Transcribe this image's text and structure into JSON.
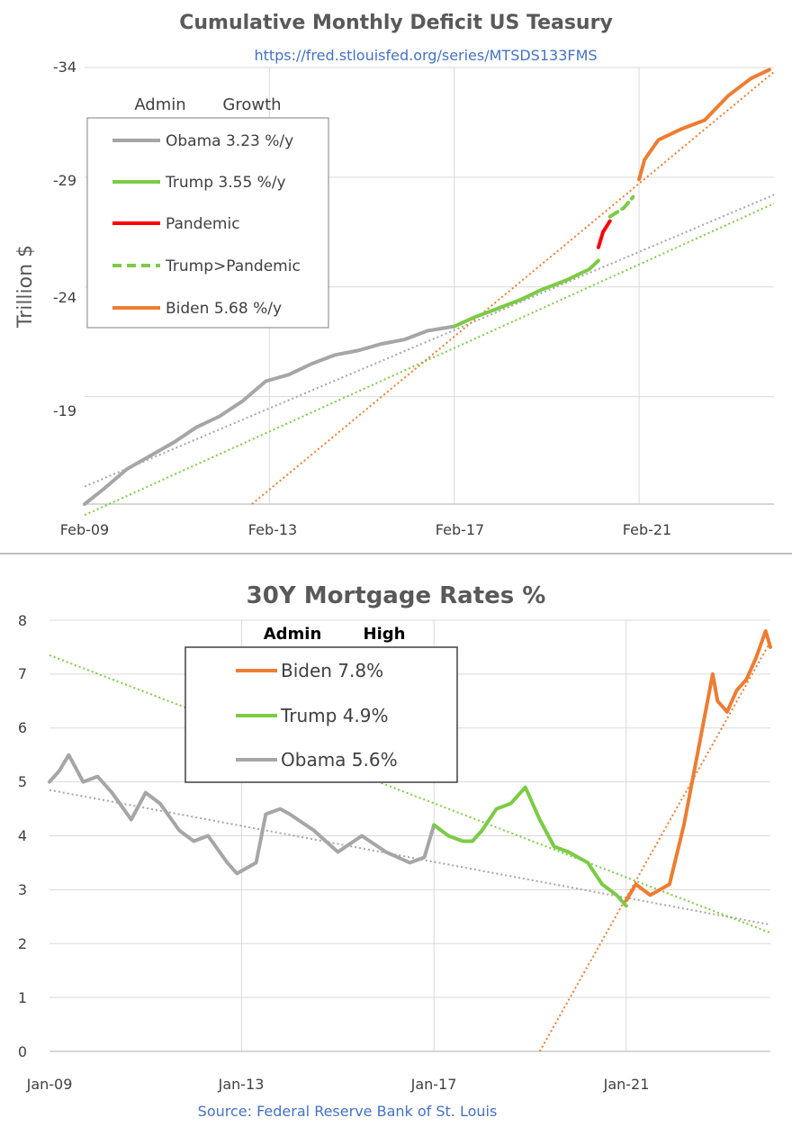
{
  "chart_data": [
    {
      "type": "line",
      "title": "Cumulative Monthly Deficit US Teasury",
      "subtitle": "https://fred.stlouisfed.org/series/MTSDS133FMS",
      "ylabel": "Trillion $",
      "xlabel": "",
      "x_ticks": [
        "Feb-09",
        "Feb-13",
        "Feb-17",
        "Feb-21"
      ],
      "y_ticks": [
        "-34",
        "-29",
        "-24",
        "-19"
      ],
      "ylim": [
        -14.1,
        -34
      ],
      "xlim": [
        2009.08,
        2024.0
      ],
      "grid": true,
      "legend_headers": {
        "admin": "Admin",
        "growth": "Growth"
      },
      "legend": [
        {
          "name": "Obama 3.23 %/y",
          "color": "#A6A6A6",
          "style": "solid"
        },
        {
          "name": "Trump 3.55 %/y",
          "color": "#7CCB45",
          "style": "solid"
        },
        {
          "name": "Pandemic",
          "color": "#FF0000",
          "style": "solid"
        },
        {
          "name": "Trump>Pandemic",
          "color": "#7CCB45",
          "style": "dashed"
        },
        {
          "name": "Biden 5.68 %/y",
          "color": "#ED7D31",
          "style": "solid"
        }
      ],
      "series": [
        {
          "name": "Obama",
          "color": "#A6A6A6",
          "style": "solid",
          "x": [
            2009.08,
            2009.5,
            2010.0,
            2010.5,
            2011.0,
            2011.5,
            2012.0,
            2012.5,
            2013.0,
            2013.5,
            2014.0,
            2014.5,
            2015.0,
            2015.5,
            2016.0,
            2016.5,
            2017.08
          ],
          "y": [
            -14.1,
            -14.8,
            -15.7,
            -16.3,
            -16.9,
            -17.6,
            -18.1,
            -18.8,
            -19.7,
            -20.0,
            -20.5,
            -20.9,
            -21.1,
            -21.4,
            -21.6,
            -22.0,
            -22.2
          ]
        },
        {
          "name": "Trump",
          "color": "#7CCB45",
          "style": "solid",
          "x": [
            2017.08,
            2017.5,
            2018.0,
            2018.5,
            2019.0,
            2019.5,
            2020.0,
            2020.2
          ],
          "y": [
            -22.2,
            -22.6,
            -23.0,
            -23.4,
            -23.9,
            -24.3,
            -24.8,
            -25.2
          ]
        },
        {
          "name": "Pandemic",
          "color": "#FF0000",
          "style": "solid",
          "x": [
            2020.2,
            2020.3,
            2020.45
          ],
          "y": [
            -25.8,
            -26.5,
            -27.0
          ]
        },
        {
          "name": "Trump>Pandemic",
          "color": "#7CCB45",
          "style": "dashed",
          "x": [
            2020.45,
            2020.75,
            2020.95
          ],
          "y": [
            -27.2,
            -27.6,
            -28.1
          ]
        },
        {
          "name": "Biden",
          "color": "#ED7D31",
          "style": "solid",
          "x": [
            2021.08,
            2021.2,
            2021.5,
            2022.0,
            2022.5,
            2023.0,
            2023.5,
            2023.9
          ],
          "y": [
            -28.9,
            -29.8,
            -30.7,
            -31.2,
            -31.6,
            -32.7,
            -33.5,
            -33.9
          ]
        },
        {
          "name": "Obama trend",
          "color": "#A6A6A6",
          "style": "dotted",
          "x": [
            2009.08,
            2024.0
          ],
          "y": [
            -14.9,
            -28.2
          ]
        },
        {
          "name": "Trump trend",
          "color": "#7CCB45",
          "style": "dotted",
          "x": [
            2009.08,
            2024.0
          ],
          "y": [
            -13.6,
            -27.8
          ]
        },
        {
          "name": "Biden trend",
          "color": "#ED7D31",
          "style": "dotted",
          "x": [
            2012.7,
            2024.0
          ],
          "y": [
            -14.1,
            -33.8
          ]
        }
      ]
    },
    {
      "type": "line",
      "title": "30Y Mortgage Rates %",
      "source": "Source: Federal Reserve Bank of St. Louis",
      "xlabel": "",
      "ylabel": "",
      "x_ticks": [
        "Jan-09",
        "Jan-13",
        "Jan-17",
        "Jan-21"
      ],
      "y_ticks": [
        "0",
        "1",
        "2",
        "3",
        "4",
        "5",
        "6",
        "7",
        "8"
      ],
      "ylim": [
        0,
        8
      ],
      "xlim": [
        2009.0,
        2024.0
      ],
      "grid": true,
      "legend_headers": {
        "admin": "Admin",
        "high": "High"
      },
      "legend": [
        {
          "name": "Biden 7.8%",
          "color": "#ED7D31"
        },
        {
          "name": "Trump 4.9%",
          "color": "#7CCB45"
        },
        {
          "name": "Obama 5.6%",
          "color": "#A6A6A6"
        }
      ],
      "series": [
        {
          "name": "Obama",
          "color": "#A6A6A6",
          "style": "solid",
          "x": [
            2009.0,
            2009.2,
            2009.4,
            2009.7,
            2010.0,
            2010.3,
            2010.7,
            2011.0,
            2011.3,
            2011.7,
            2012.0,
            2012.3,
            2012.7,
            2012.9,
            2013.3,
            2013.5,
            2013.8,
            2014.0,
            2014.5,
            2015.0,
            2015.5,
            2016.0,
            2016.5,
            2016.8,
            2017.0
          ],
          "y": [
            5.0,
            5.2,
            5.5,
            5.0,
            5.1,
            4.8,
            4.3,
            4.8,
            4.6,
            4.1,
            3.9,
            4.0,
            3.5,
            3.3,
            3.5,
            4.4,
            4.5,
            4.4,
            4.1,
            3.7,
            4.0,
            3.7,
            3.5,
            3.6,
            4.2
          ]
        },
        {
          "name": "Trump",
          "color": "#7CCB45",
          "style": "solid",
          "x": [
            2017.0,
            2017.3,
            2017.6,
            2017.8,
            2018.0,
            2018.3,
            2018.6,
            2018.9,
            2019.2,
            2019.5,
            2019.8,
            2020.2,
            2020.5,
            2020.8,
            2021.0
          ],
          "y": [
            4.2,
            4.0,
            3.9,
            3.9,
            4.1,
            4.5,
            4.6,
            4.9,
            4.3,
            3.8,
            3.7,
            3.5,
            3.1,
            2.9,
            2.7
          ]
        },
        {
          "name": "Biden",
          "color": "#ED7D31",
          "style": "solid",
          "x": [
            2021.0,
            2021.2,
            2021.5,
            2021.9,
            2022.2,
            2022.5,
            2022.8,
            2022.9,
            2023.1,
            2023.3,
            2023.5,
            2023.7,
            2023.9,
            2024.0
          ],
          "y": [
            2.8,
            3.1,
            2.9,
            3.1,
            4.2,
            5.6,
            7.0,
            6.5,
            6.3,
            6.7,
            6.9,
            7.3,
            7.8,
            7.5
          ]
        },
        {
          "name": "Obama trend",
          "color": "#A6A6A6",
          "style": "dotted",
          "x": [
            2009.0,
            2024.0
          ],
          "y": [
            4.85,
            2.35
          ]
        },
        {
          "name": "Trump trend",
          "color": "#7CCB45",
          "style": "dotted",
          "x": [
            2009.0,
            2024.0
          ],
          "y": [
            7.35,
            2.2
          ]
        },
        {
          "name": "Biden trend",
          "color": "#ED7D31",
          "style": "dotted",
          "x": [
            2019.2,
            2024.0
          ],
          "y": [
            0.0,
            7.6
          ]
        }
      ]
    }
  ]
}
